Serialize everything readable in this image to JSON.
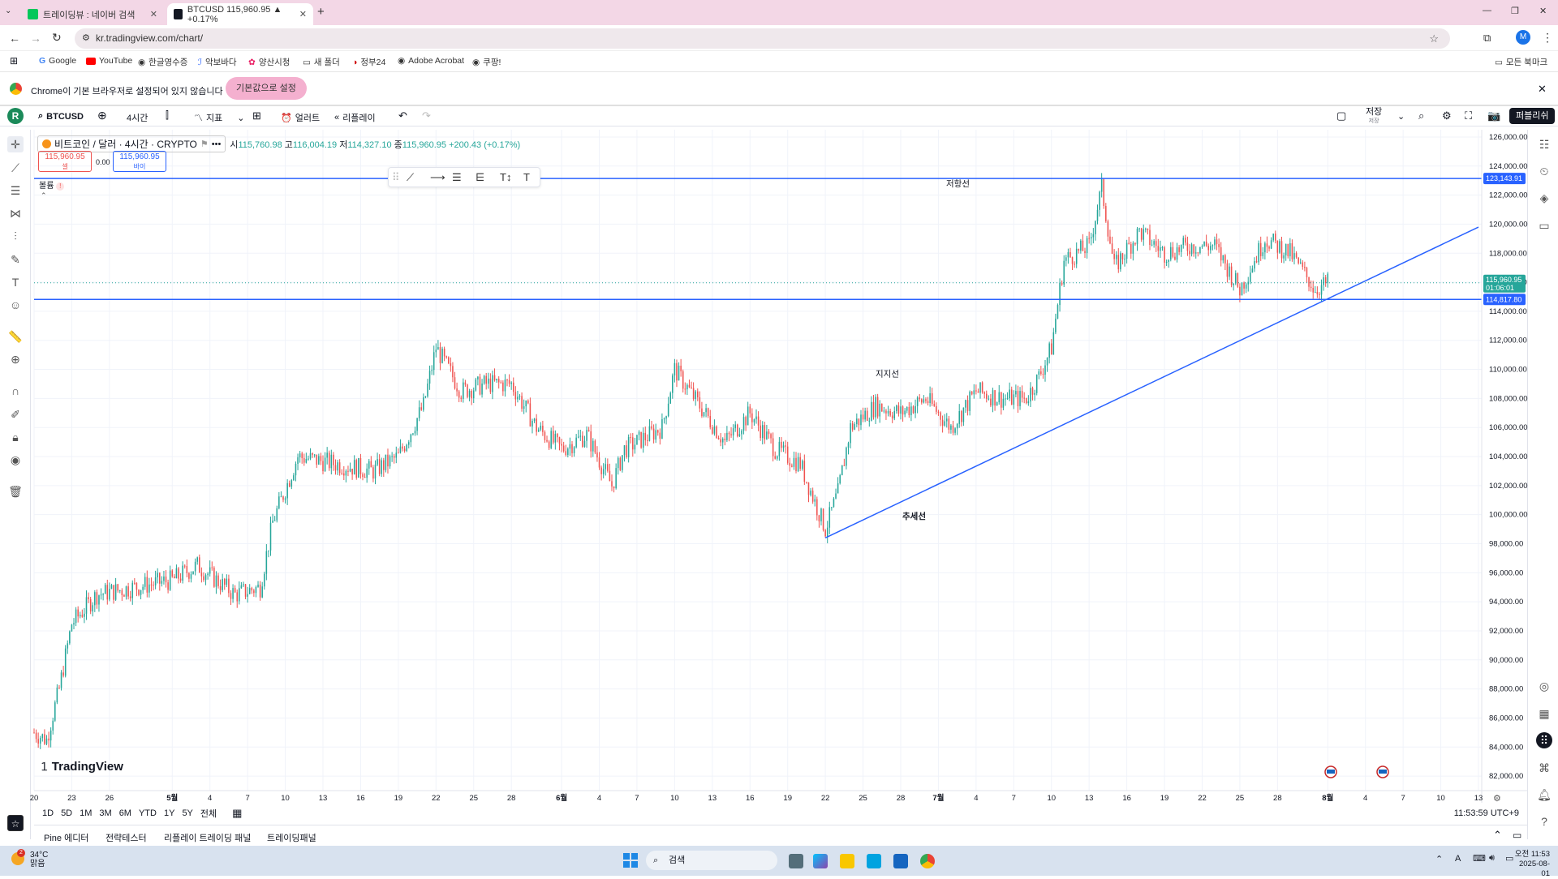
{
  "browser": {
    "tabs": [
      {
        "title": "트레이딩뷰 : 네이버 검색",
        "favicon": "naver-icon",
        "color": "#03c75a",
        "active": false
      },
      {
        "title": "BTCUSD 115,960.95 ▲ +0.17%",
        "favicon": "tradingview-icon",
        "color": "#131722",
        "active": true
      }
    ],
    "new_tab": "+",
    "window_controls": [
      "—",
      "❐",
      "✕"
    ],
    "url": "kr.tradingview.com/chart/",
    "bookmarks": [
      "Google",
      "YouTube",
      "한글영수증",
      "악보바다",
      "양산시청",
      "새 폴더",
      "정부24",
      "Adobe Acrobat",
      "쿠팡!"
    ],
    "all_bookmarks": "모든 북마크",
    "profile_initial": "M",
    "infobar": {
      "message": "Chrome이 기본 브라우저로 설정되어 있지 않습니다",
      "button": "기본값으로 설정"
    }
  },
  "toolbar": {
    "logo": "R",
    "symbol": "BTCUSD",
    "interval": "4시간",
    "indicators": "지표",
    "alert": "얼러트",
    "replay": "리플레이",
    "save": "저장",
    "save_sub": "저장",
    "publish": "퍼블리쉬"
  },
  "legend": {
    "title": "비트코인 / 달러 · 4시간 · CRYPTO",
    "open_label": "시",
    "open": "115,760.98",
    "high_label": "고",
    "high": "116,004.19",
    "low_label": "저",
    "low": "114,327.10",
    "close_label": "종",
    "close": "115,960.95",
    "change": "+200.43 (+0.17%)",
    "sell_price": "115,960.95",
    "sell_label": "셀",
    "spread": "0.00",
    "buy_price": "115,960.95",
    "buy_label": "바이",
    "volume_label": "볼륨"
  },
  "chart_data": {
    "type": "candlestick",
    "symbol": "BTCUSD",
    "interval": "4h",
    "y_axis": {
      "min": 81000,
      "max": 126500,
      "ticks": [
        82000,
        84000,
        86000,
        88000,
        90000,
        92000,
        94000,
        96000,
        98000,
        100000,
        102000,
        104000,
        106000,
        108000,
        110000,
        112000,
        114000,
        116000,
        118000,
        120000,
        122000,
        124000,
        126000
      ]
    },
    "y_tick_labels": [
      "82,000.00",
      "84,000.00",
      "86,000.00",
      "88,000.00",
      "90,000.00",
      "92,000.00",
      "94,000.00",
      "96,000.00",
      "98,000.00",
      "100,000.00",
      "102,000.00",
      "104,000.00",
      "106,000.00",
      "108,000.00",
      "110,000.00",
      "112,000.00",
      "114,000.00",
      "116,000.00",
      "118,000.00",
      "120,000.00",
      "122,000.00",
      "124,000.00",
      "126,000.00"
    ],
    "x_tick_labels": [
      "20",
      "23",
      "26",
      "5월",
      "4",
      "7",
      "10",
      "13",
      "16",
      "19",
      "22",
      "25",
      "28",
      "6월",
      "4",
      "7",
      "10",
      "13",
      "16",
      "19",
      "22",
      "25",
      "28",
      "7월",
      "4",
      "7",
      "10",
      "13",
      "16",
      "19",
      "22",
      "25",
      "28",
      "8월",
      "4",
      "7",
      "10",
      "13"
    ],
    "x_start_date": "2025-04-20",
    "x_end_date": "2025-08-13",
    "price_path": [
      [
        "2025-04-20",
        85000
      ],
      [
        "2025-04-21",
        84500
      ],
      [
        "2025-04-22",
        88000
      ],
      [
        "2025-04-23",
        92500
      ],
      [
        "2025-04-25",
        94500
      ],
      [
        "2025-04-28",
        95000
      ],
      [
        "2025-05-01",
        95500
      ],
      [
        "2025-05-03",
        96500
      ],
      [
        "2025-05-06",
        94500
      ],
      [
        "2025-05-08",
        95000
      ],
      [
        "2025-05-09",
        99500
      ],
      [
        "2025-05-11",
        104000
      ],
      [
        "2025-05-14",
        103500
      ],
      [
        "2025-05-17",
        103000
      ],
      [
        "2025-05-19",
        104000
      ],
      [
        "2025-05-21",
        107500
      ],
      [
        "2025-05-22",
        111500
      ],
      [
        "2025-05-24",
        108500
      ],
      [
        "2025-05-26",
        109000
      ],
      [
        "2025-05-28",
        109000
      ],
      [
        "2025-05-30",
        106000
      ],
      [
        "2025-06-01",
        104500
      ],
      [
        "2025-06-03",
        105500
      ],
      [
        "2025-06-05",
        102000
      ],
      [
        "2025-06-06",
        104500
      ],
      [
        "2025-06-09",
        106000
      ],
      [
        "2025-06-10",
        110000
      ],
      [
        "2025-06-12",
        107500
      ],
      [
        "2025-06-14",
        105000
      ],
      [
        "2025-06-16",
        107000
      ],
      [
        "2025-06-18",
        104500
      ],
      [
        "2025-06-20",
        103500
      ],
      [
        "2025-06-22",
        99000
      ],
      [
        "2025-06-23",
        101500
      ],
      [
        "2025-06-24",
        106000
      ],
      [
        "2025-06-26",
        107500
      ],
      [
        "2025-06-28",
        107000
      ],
      [
        "2025-06-30",
        108000
      ],
      [
        "2025-07-02",
        106000
      ],
      [
        "2025-07-04",
        108500
      ],
      [
        "2025-07-06",
        108000
      ],
      [
        "2025-07-08",
        108000
      ],
      [
        "2025-07-09",
        109500
      ],
      [
        "2025-07-10",
        111500
      ],
      [
        "2025-07-11",
        117500
      ],
      [
        "2025-07-13",
        118500
      ],
      [
        "2025-07-14",
        122500
      ],
      [
        "2025-07-15",
        117000
      ],
      [
        "2025-07-17",
        119500
      ],
      [
        "2025-07-19",
        118000
      ],
      [
        "2025-07-21",
        118500
      ],
      [
        "2025-07-23",
        118500
      ],
      [
        "2025-07-25",
        115500
      ],
      [
        "2025-07-27",
        119000
      ],
      [
        "2025-07-29",
        118000
      ],
      [
        "2025-07-31",
        115500
      ],
      [
        "2025-08-01",
        115960.95
      ]
    ],
    "lines": [
      {
        "label": "저항선",
        "kind": "horizontal",
        "price": 123143.91
      },
      {
        "label": "지지선",
        "kind": "horizontal",
        "price": 114817.8
      },
      {
        "label": "추세선",
        "kind": "trend",
        "from": [
          "2025-06-22",
          98400
        ],
        "to": [
          "2025-08-13",
          119800
        ]
      }
    ],
    "price_labels": [
      "123,143.91",
      "114,817.80"
    ],
    "last_price": "115,960.95",
    "countdown": "01:06:01",
    "watermark": "TradingView"
  },
  "periods": [
    "1D",
    "5D",
    "1M",
    "3M",
    "6M",
    "YTD",
    "1Y",
    "5Y",
    "전체"
  ],
  "clock": "11:53:59 UTC+9",
  "bottom_tabs": [
    "Pine 에디터",
    "전략테스터",
    "리플레이 트레이딩 패널",
    "트레이딩패널"
  ],
  "taskbar": {
    "weather": {
      "temp": "34°C",
      "desc": "맑음",
      "badge": "2"
    },
    "search": "검색",
    "time": "오전 11:53",
    "date": "2025-08-01",
    "ime": "A"
  },
  "colors": {
    "up": "#26a69a",
    "down": "#ef5350",
    "line": "#2962ff",
    "tab_bg": "#f3d7e6",
    "accent": "#2962ff"
  }
}
